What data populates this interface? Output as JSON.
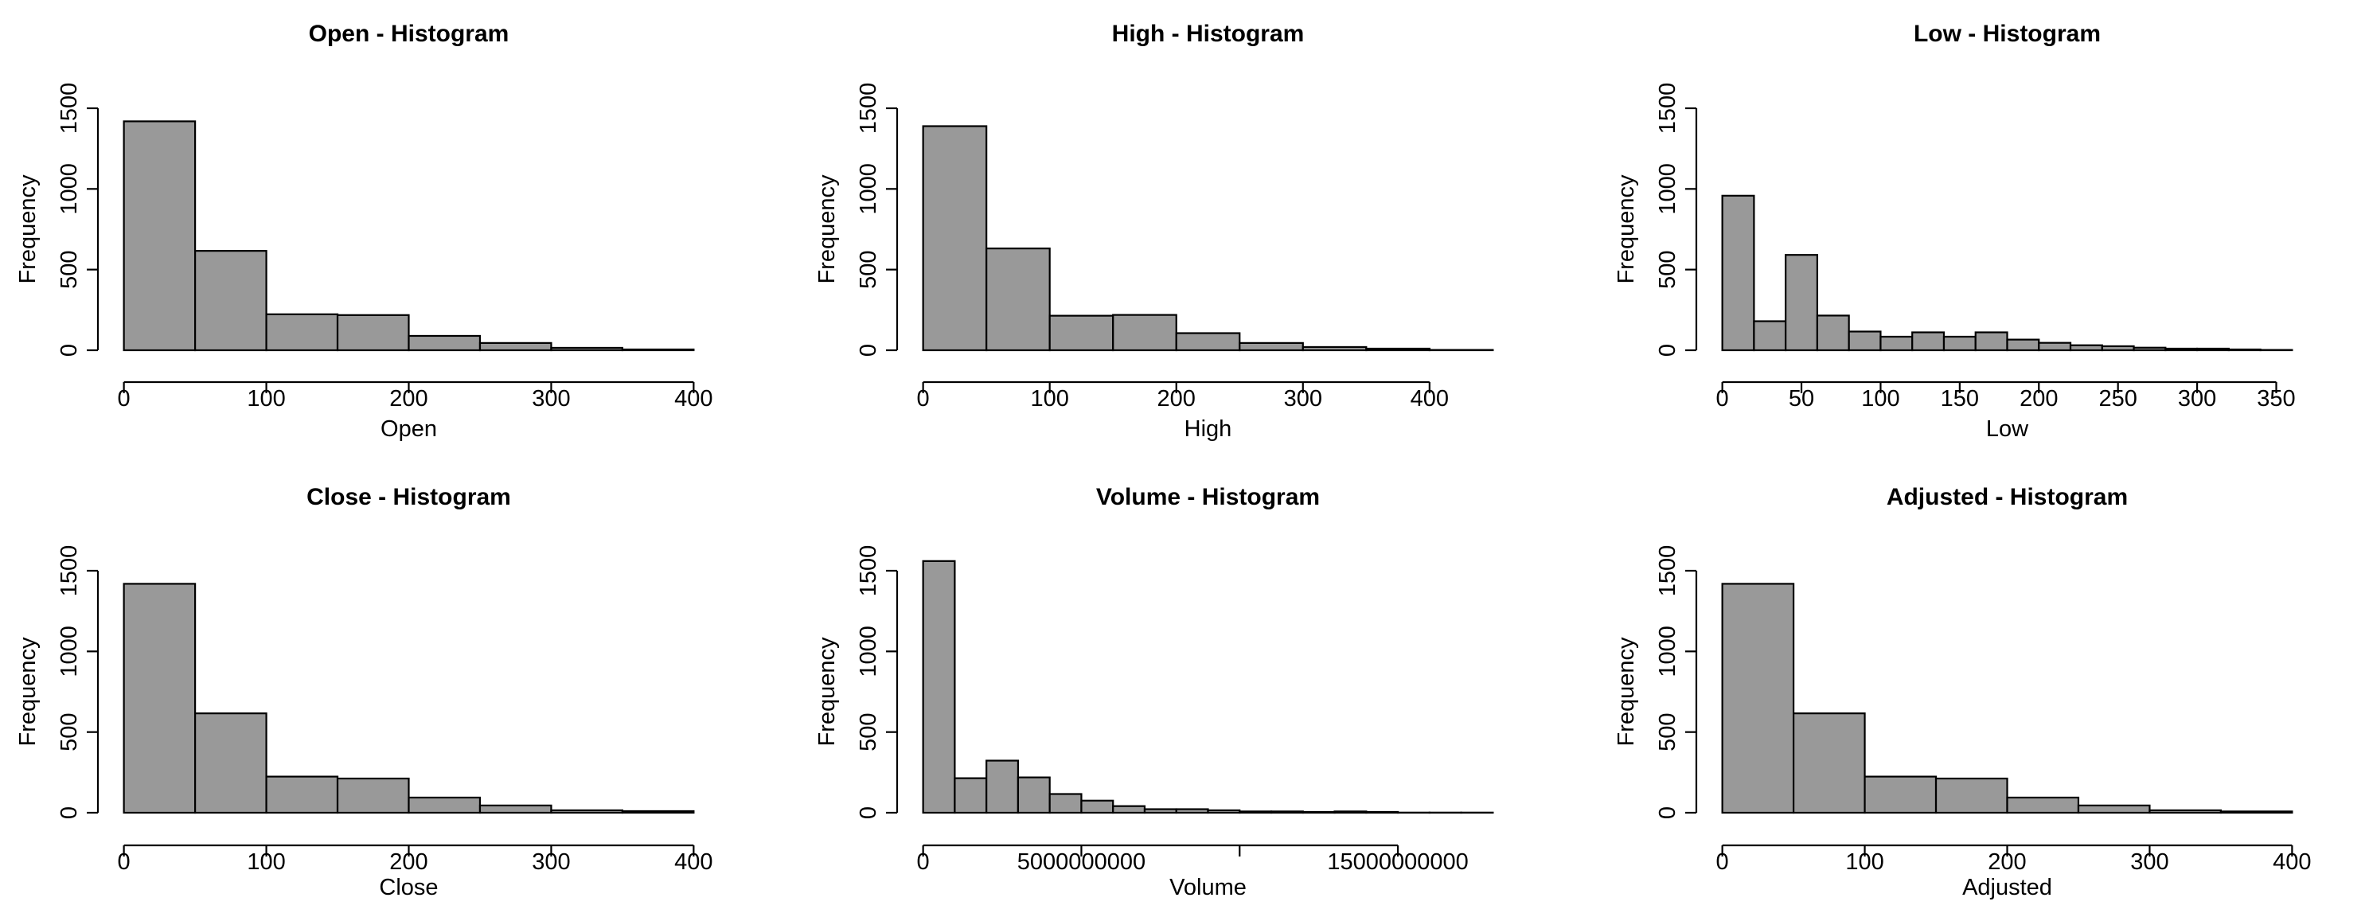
{
  "chart_data": [
    {
      "type": "bar",
      "title": "Open - Histogram",
      "xlabel": "Open",
      "ylabel": "Frequency",
      "breaks": [
        0,
        50,
        100,
        150,
        200,
        250,
        300,
        350,
        400
      ],
      "values": [
        1419,
        616,
        223,
        218,
        89,
        45,
        15,
        5
      ],
      "xlim": [
        0,
        400
      ],
      "ylim": [
        0,
        1500
      ],
      "xticks": [
        0,
        100,
        200,
        300,
        400
      ],
      "xtick_labels": [
        "0",
        "100",
        "200",
        "300",
        "400"
      ],
      "yticks": [
        0,
        500,
        1000,
        1500
      ],
      "ytick_labels": [
        "0",
        "500",
        "1000",
        "1500"
      ]
    },
    {
      "type": "bar",
      "title": "High - Histogram",
      "xlabel": "High",
      "ylabel": "Frequency",
      "breaks": [
        0,
        50,
        100,
        150,
        200,
        250,
        300,
        350,
        400,
        450
      ],
      "values": [
        1389,
        631,
        214,
        219,
        106,
        45,
        20,
        10,
        2
      ],
      "xlim": [
        0,
        450
      ],
      "ylim": [
        0,
        1500
      ],
      "xticks": [
        0,
        100,
        200,
        300,
        400
      ],
      "xtick_labels": [
        "0",
        "100",
        "200",
        "300",
        "400"
      ],
      "yticks": [
        0,
        500,
        1000,
        1500
      ],
      "ytick_labels": [
        "0",
        "500",
        "1000",
        "1500"
      ]
    },
    {
      "type": "bar",
      "title": "Low - Histogram",
      "xlabel": "Low",
      "ylabel": "Frequency",
      "breaks": [
        0,
        20,
        40,
        60,
        80,
        100,
        120,
        140,
        160,
        180,
        200,
        220,
        240,
        260,
        280,
        300,
        320,
        340,
        360
      ],
      "values": [
        958,
        180,
        591,
        215,
        116,
        84,
        111,
        84,
        111,
        66,
        46,
        31,
        25,
        16,
        10,
        10,
        5,
        2
      ],
      "xlim": [
        0,
        360
      ],
      "ylim": [
        0,
        1500
      ],
      "xticks": [
        0,
        50,
        100,
        150,
        200,
        250,
        300,
        350
      ],
      "xtick_labels": [
        "0",
        "50",
        "100",
        "150",
        "200",
        "250",
        "300",
        "350"
      ],
      "yticks": [
        0,
        500,
        1000,
        1500
      ],
      "ytick_labels": [
        "0",
        "500",
        "1000",
        "1500"
      ]
    },
    {
      "type": "bar",
      "title": "Close - Histogram",
      "xlabel": "Close",
      "ylabel": "Frequency",
      "breaks": [
        0,
        50,
        100,
        150,
        200,
        250,
        300,
        350,
        400
      ],
      "values": [
        1419,
        616,
        224,
        212,
        94,
        45,
        15,
        10
      ],
      "xlim": [
        0,
        400
      ],
      "ylim": [
        0,
        1500
      ],
      "xticks": [
        0,
        100,
        200,
        300,
        400
      ],
      "xtick_labels": [
        "0",
        "100",
        "200",
        "300",
        "400"
      ],
      "yticks": [
        0,
        500,
        1000,
        1500
      ],
      "ytick_labels": [
        "0",
        "500",
        "1000",
        "1500"
      ]
    },
    {
      "type": "bar",
      "title": "Volume - Histogram",
      "xlabel": "Volume",
      "ylabel": "Frequency",
      "breaks": [
        0,
        1000000000,
        2000000000,
        3000000000,
        4000000000,
        5000000000,
        6000000000,
        7000000000,
        8000000000,
        9000000000,
        10000000000,
        11000000000,
        12000000000,
        13000000000,
        14000000000,
        15000000000,
        16000000000,
        17000000000,
        18000000000
      ],
      "values": [
        1560,
        214,
        323,
        219,
        116,
        75,
        41,
        22,
        22,
        15,
        8,
        8,
        5,
        8,
        5,
        1,
        1,
        1
      ],
      "xlim": [
        0,
        18000000000
      ],
      "ylim": [
        0,
        1560
      ],
      "xticks": [
        0,
        5000000000,
        10000000000,
        15000000000
      ],
      "xtick_labels": [
        "0",
        "5000000000",
        "",
        "15000000000"
      ],
      "yticks": [
        0,
        500,
        1000,
        1500
      ],
      "ytick_labels": [
        "0",
        "500",
        "1000",
        "1500"
      ]
    },
    {
      "type": "bar",
      "title": "Adjusted - Histogram",
      "xlabel": "Adjusted",
      "ylabel": "Frequency",
      "breaks": [
        0,
        50,
        100,
        150,
        200,
        250,
        300,
        350,
        400
      ],
      "values": [
        1419,
        616,
        224,
        212,
        94,
        45,
        15,
        8
      ],
      "xlim": [
        0,
        400
      ],
      "ylim": [
        0,
        1500
      ],
      "xticks": [
        0,
        100,
        200,
        300,
        400
      ],
      "xtick_labels": [
        "0",
        "100",
        "200",
        "300",
        "400"
      ],
      "yticks": [
        0,
        500,
        1000,
        1500
      ],
      "ytick_labels": [
        "0",
        "500",
        "1000",
        "1500"
      ]
    }
  ],
  "style": {
    "bar_fill": "#999999",
    "bar_stroke": "#000000"
  }
}
